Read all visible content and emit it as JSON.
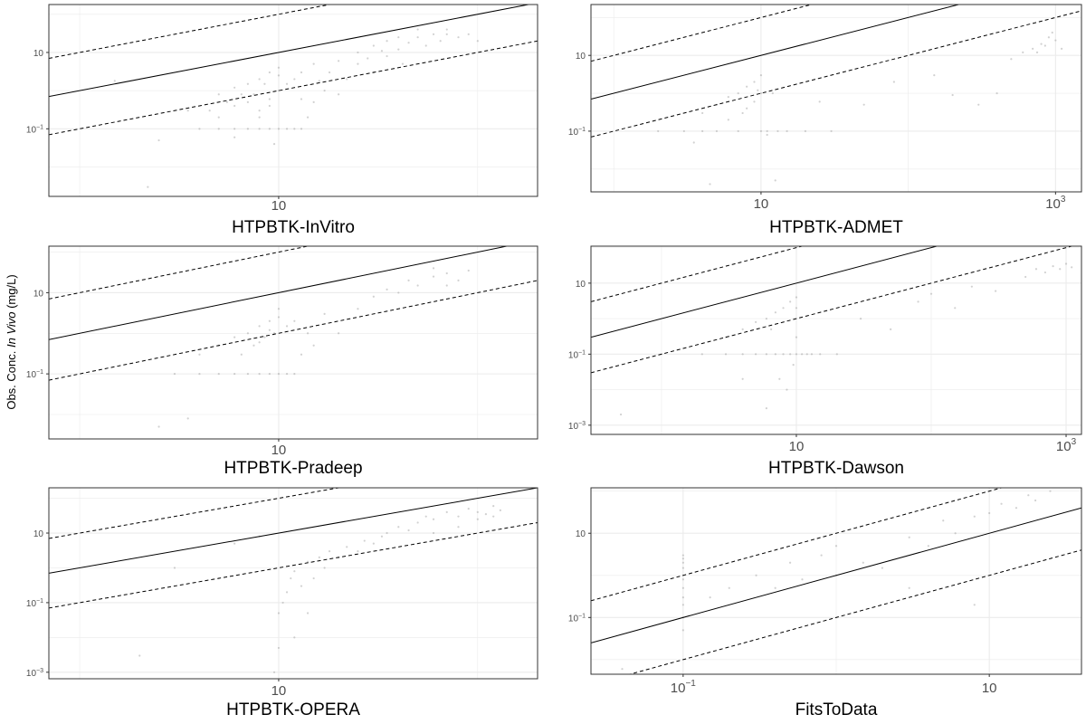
{
  "figure": {
    "ylabel_prefix": "Obs. Conc. ",
    "ylabel_italic": "In Vivo",
    "ylabel_suffix": " (mg/L)"
  },
  "chart_data": [
    {
      "type": "scatter",
      "title": "HTPBTK-InVitro",
      "xscale": "log10",
      "yscale": "log10",
      "xlim": [
        0.7,
        200
      ],
      "ylim": [
        0.0017,
        180
      ],
      "xticks": [
        {
          "value": 10,
          "label": "10"
        }
      ],
      "yticks": [
        {
          "value": 0.1,
          "base": "10",
          "exp": "−1"
        },
        {
          "value": 10,
          "label": "10"
        }
      ],
      "reference_lines": [
        {
          "ratio": 1,
          "style": "solid"
        },
        {
          "ratio": 10,
          "style": "dashed"
        },
        {
          "ratio": 0.1,
          "style": "dashed"
        }
      ],
      "points": [
        [
          2.5,
          0.05
        ],
        [
          3.5,
          0.3
        ],
        [
          4,
          0.1
        ],
        [
          4.5,
          0.3
        ],
        [
          5,
          0.1
        ],
        [
          5,
          0.2
        ],
        [
          5,
          0.8
        ],
        [
          5.5,
          0.5
        ],
        [
          6,
          0.1
        ],
        [
          6,
          0.4
        ],
        [
          6,
          1.2
        ],
        [
          6.5,
          0.8
        ],
        [
          7,
          0.1
        ],
        [
          7,
          0.5
        ],
        [
          7,
          1.5
        ],
        [
          7.5,
          0.8
        ],
        [
          8,
          0.1
        ],
        [
          8,
          0.3
        ],
        [
          8,
          2
        ],
        [
          8.5,
          1.5
        ],
        [
          9,
          0.1
        ],
        [
          9,
          0.6
        ],
        [
          9,
          3
        ],
        [
          9.5,
          0.04
        ],
        [
          10,
          0.1
        ],
        [
          10,
          1
        ],
        [
          10,
          2.5
        ],
        [
          10,
          4
        ],
        [
          11,
          0.1
        ],
        [
          11,
          1.5
        ],
        [
          12,
          0.1
        ],
        [
          12,
          2
        ],
        [
          13,
          0.1
        ],
        [
          13,
          3
        ],
        [
          14,
          0.2
        ],
        [
          15,
          0.5
        ],
        [
          15,
          5
        ],
        [
          17,
          1
        ],
        [
          18,
          3
        ],
        [
          20,
          0.8
        ],
        [
          20,
          6
        ],
        [
          22,
          2
        ],
        [
          25,
          5
        ],
        [
          25,
          10
        ],
        [
          30,
          3
        ],
        [
          30,
          15
        ],
        [
          35,
          8
        ],
        [
          35,
          20
        ],
        [
          40,
          12
        ],
        [
          40,
          25
        ],
        [
          45,
          18
        ],
        [
          50,
          25
        ],
        [
          55,
          15
        ],
        [
          60,
          30
        ],
        [
          65,
          20
        ],
        [
          70,
          30
        ],
        [
          80,
          25
        ],
        [
          90,
          30
        ],
        [
          100,
          20
        ],
        [
          50,
          40
        ],
        [
          70,
          40
        ],
        [
          6,
          0.06
        ],
        [
          8,
          0.2
        ],
        [
          9,
          0.4
        ],
        [
          13,
          0.6
        ],
        [
          16,
          1.8
        ],
        [
          28,
          7
        ],
        [
          33,
          11
        ],
        [
          42,
          5
        ],
        [
          2.2,
          0.003
        ],
        [
          1.5,
          1.8
        ]
      ]
    },
    {
      "type": "scatter",
      "title": "HTPBTK-ADMET",
      "xscale": "log10",
      "yscale": "log10",
      "xlim": [
        0.7,
        1500
      ],
      "ylim": [
        0.0025,
        220
      ],
      "xticks": [
        {
          "value": 10,
          "label": "10"
        },
        {
          "value": 1000,
          "base": "10",
          "exp": "3"
        }
      ],
      "yticks": [
        {
          "value": 0.1,
          "base": "10",
          "exp": "−1"
        },
        {
          "value": 10,
          "label": "10"
        }
      ],
      "reference_lines": [
        {
          "ratio": 1,
          "style": "solid"
        },
        {
          "ratio": 10,
          "style": "dashed"
        },
        {
          "ratio": 0.1,
          "style": "dashed"
        }
      ],
      "points": [
        [
          2,
          0.1
        ],
        [
          3,
          0.1
        ],
        [
          4,
          0.3
        ],
        [
          4,
          0.1
        ],
        [
          5,
          0.5
        ],
        [
          5,
          0.1
        ],
        [
          6,
          0.8
        ],
        [
          6,
          0.2
        ],
        [
          7,
          1
        ],
        [
          7,
          0.1
        ],
        [
          8,
          1.5
        ],
        [
          8,
          0.4
        ],
        [
          9,
          2
        ],
        [
          9,
          0.6
        ],
        [
          10,
          3
        ],
        [
          10,
          1
        ],
        [
          10,
          0.1
        ],
        [
          11,
          0.1
        ],
        [
          12,
          1
        ],
        [
          13,
          0.1
        ],
        [
          15,
          0.1
        ],
        [
          20,
          0.1
        ],
        [
          25,
          0.6
        ],
        [
          30,
          0.1
        ],
        [
          50,
          0.5
        ],
        [
          80,
          2
        ],
        [
          150,
          3
        ],
        [
          200,
          0.9
        ],
        [
          300,
          0.5
        ],
        [
          400,
          1
        ],
        [
          500,
          8
        ],
        [
          600,
          12
        ],
        [
          700,
          15
        ],
        [
          800,
          20
        ],
        [
          900,
          30
        ],
        [
          1000,
          25
        ],
        [
          1100,
          15
        ],
        [
          950,
          40
        ],
        [
          850,
          18
        ],
        [
          750,
          12
        ],
        [
          4.5,
          0.004
        ],
        [
          11,
          0.08
        ],
        [
          12.5,
          0.005
        ],
        [
          3.5,
          0.05
        ],
        [
          7.5,
          0.3
        ],
        [
          9.5,
          1.2
        ]
      ]
    },
    {
      "type": "scatter",
      "title": "HTPBTK-Pradeep",
      "xscale": "log10",
      "yscale": "log10",
      "xlim": [
        0.7,
        200
      ],
      "ylim": [
        0.0025,
        140
      ],
      "xticks": [
        {
          "value": 10,
          "label": "10"
        }
      ],
      "yticks": [
        {
          "value": 0.1,
          "base": "10",
          "exp": "−1"
        },
        {
          "value": 10,
          "label": "10"
        }
      ],
      "reference_lines": [
        {
          "ratio": 1,
          "style": "solid"
        },
        {
          "ratio": 10,
          "style": "dashed"
        },
        {
          "ratio": 0.1,
          "style": "dashed"
        }
      ],
      "points": [
        [
          2.5,
          0.005
        ],
        [
          3,
          0.1
        ],
        [
          4,
          0.1
        ],
        [
          4,
          0.3
        ],
        [
          5,
          0.1
        ],
        [
          5,
          0.5
        ],
        [
          6,
          0.1
        ],
        [
          6,
          0.8
        ],
        [
          6.5,
          0.3
        ],
        [
          7,
          0.1
        ],
        [
          7,
          1
        ],
        [
          7.5,
          0.5
        ],
        [
          8,
          0.1
        ],
        [
          8,
          1.5
        ],
        [
          8.5,
          0.8
        ],
        [
          9,
          0.1
        ],
        [
          9,
          2
        ],
        [
          9.5,
          1
        ],
        [
          10,
          0.1
        ],
        [
          10,
          2.5
        ],
        [
          10,
          4
        ],
        [
          11,
          0.1
        ],
        [
          11,
          1.5
        ],
        [
          12,
          0.1
        ],
        [
          12,
          2
        ],
        [
          13,
          0.3
        ],
        [
          14,
          1
        ],
        [
          15,
          0.5
        ],
        [
          17,
          3
        ],
        [
          20,
          1
        ],
        [
          25,
          4
        ],
        [
          30,
          8
        ],
        [
          35,
          12
        ],
        [
          40,
          10
        ],
        [
          45,
          20
        ],
        [
          50,
          15
        ],
        [
          60,
          25
        ],
        [
          70,
          30
        ],
        [
          80,
          20
        ],
        [
          90,
          35
        ],
        [
          60,
          40
        ],
        [
          70,
          15
        ],
        [
          3.5,
          0.008
        ],
        [
          8,
          0.6
        ],
        [
          9,
          1.2
        ]
      ]
    },
    {
      "type": "scatter",
      "title": "HTPBTK-Dawson",
      "xscale": "log10",
      "yscale": "log10",
      "xlim": [
        0.3,
        1300
      ],
      "ylim": [
        0.00055,
        110
      ],
      "xticks": [
        {
          "value": 10,
          "label": "10"
        },
        {
          "value": 1000,
          "base": "10",
          "exp": "3"
        }
      ],
      "yticks": [
        {
          "value": 0.001,
          "base": "10",
          "exp": "−3"
        },
        {
          "value": 0.1,
          "base": "10",
          "exp": "−1"
        },
        {
          "value": 10,
          "label": "10"
        }
      ],
      "reference_lines": [
        {
          "ratio": 1,
          "style": "solid"
        },
        {
          "ratio": 10,
          "style": "dashed"
        },
        {
          "ratio": 0.1,
          "style": "dashed"
        }
      ],
      "points": [
        [
          0.5,
          0.002
        ],
        [
          1,
          0.1
        ],
        [
          2,
          0.1
        ],
        [
          3,
          0.1
        ],
        [
          3,
          0.3
        ],
        [
          4,
          0.1
        ],
        [
          4,
          0.5
        ],
        [
          5,
          0.1
        ],
        [
          5,
          0.8
        ],
        [
          6,
          0.1
        ],
        [
          6,
          1
        ],
        [
          6.5,
          0.5
        ],
        [
          7,
          0.1
        ],
        [
          7,
          1.5
        ],
        [
          7.5,
          0.02
        ],
        [
          8,
          0.1
        ],
        [
          8,
          2
        ],
        [
          8.5,
          0.01
        ],
        [
          9,
          0.1
        ],
        [
          9,
          3
        ],
        [
          9.5,
          0.05
        ],
        [
          10,
          0.1
        ],
        [
          10,
          2
        ],
        [
          10,
          4
        ],
        [
          10,
          0.3
        ],
        [
          11,
          0.1
        ],
        [
          12,
          0.1
        ],
        [
          13,
          0.1
        ],
        [
          15,
          0.1
        ],
        [
          20,
          0.1
        ],
        [
          30,
          1
        ],
        [
          50,
          0.5
        ],
        [
          80,
          3
        ],
        [
          100,
          5
        ],
        [
          150,
          2
        ],
        [
          200,
          8
        ],
        [
          300,
          6
        ],
        [
          500,
          15
        ],
        [
          600,
          25
        ],
        [
          700,
          20
        ],
        [
          800,
          30
        ],
        [
          900,
          25
        ],
        [
          1000,
          35
        ],
        [
          1100,
          28
        ],
        [
          6,
          0.003
        ],
        [
          4,
          0.02
        ]
      ]
    },
    {
      "type": "scatter",
      "title": "HTPBTK-OPERA",
      "xscale": "log10",
      "yscale": "log10",
      "xlim": [
        0.7,
        200
      ],
      "ylim": [
        0.00065,
        200
      ],
      "xticks": [
        {
          "value": 10,
          "label": "10"
        }
      ],
      "yticks": [
        {
          "value": 0.001,
          "base": "10",
          "exp": "−3"
        },
        {
          "value": 0.1,
          "base": "10",
          "exp": "−1"
        },
        {
          "value": 10,
          "label": "10"
        }
      ],
      "reference_lines": [
        {
          "ratio": 1,
          "style": "solid"
        },
        {
          "ratio": 10,
          "style": "dashed"
        },
        {
          "ratio": 0.1,
          "style": "dashed"
        }
      ],
      "points": [
        [
          2,
          0.003
        ],
        [
          3,
          1
        ],
        [
          5,
          0.5
        ],
        [
          6,
          5
        ],
        [
          8,
          8
        ],
        [
          9.5,
          0.001
        ],
        [
          10,
          0.005
        ],
        [
          10,
          0.05
        ],
        [
          10.5,
          0.1
        ],
        [
          11,
          0.2
        ],
        [
          11.5,
          0.5
        ],
        [
          12,
          0.8
        ],
        [
          13,
          0.3
        ],
        [
          14,
          1.5
        ],
        [
          15,
          0.5
        ],
        [
          16,
          2
        ],
        [
          17,
          1
        ],
        [
          18,
          3
        ],
        [
          20,
          2
        ],
        [
          22,
          4
        ],
        [
          25,
          3
        ],
        [
          27,
          6
        ],
        [
          30,
          5
        ],
        [
          33,
          8
        ],
        [
          35,
          10
        ],
        [
          40,
          15
        ],
        [
          45,
          12
        ],
        [
          50,
          20
        ],
        [
          55,
          30
        ],
        [
          60,
          25
        ],
        [
          70,
          40
        ],
        [
          80,
          30
        ],
        [
          90,
          50
        ],
        [
          100,
          40
        ],
        [
          110,
          35
        ],
        [
          120,
          60
        ],
        [
          130,
          45
        ],
        [
          60,
          10
        ],
        [
          80,
          15
        ],
        [
          100,
          25
        ],
        [
          120,
          30
        ],
        [
          14,
          0.05
        ],
        [
          12,
          0.01
        ]
      ]
    },
    {
      "type": "scatter",
      "title": "FitsToData",
      "xscale": "log10",
      "yscale": "log10",
      "xlim": [
        0.025,
        40
      ],
      "ylim": [
        0.0045,
        120
      ],
      "xticks": [
        {
          "value": 0.1,
          "base": "10",
          "exp": "−1"
        },
        {
          "value": 10,
          "label": "10"
        }
      ],
      "yticks": [
        {
          "value": 0.1,
          "base": "10",
          "exp": "−1"
        },
        {
          "value": 10,
          "label": "10"
        }
      ],
      "reference_lines": [
        {
          "ratio": 1,
          "style": "solid"
        },
        {
          "ratio": 10,
          "style": "dashed"
        },
        {
          "ratio": 0.1,
          "style": "dashed"
        }
      ],
      "points": [
        [
          0.04,
          0.006
        ],
        [
          0.1,
          0.05
        ],
        [
          0.1,
          0.1
        ],
        [
          0.1,
          0.2
        ],
        [
          0.1,
          0.3
        ],
        [
          0.1,
          0.5
        ],
        [
          0.1,
          0.8
        ],
        [
          0.1,
          1
        ],
        [
          0.1,
          1.5
        ],
        [
          0.1,
          2
        ],
        [
          0.1,
          2.5
        ],
        [
          0.1,
          3
        ],
        [
          0.15,
          0.3
        ],
        [
          0.2,
          0.5
        ],
        [
          0.3,
          1
        ],
        [
          0.4,
          0.5
        ],
        [
          0.5,
          2
        ],
        [
          0.6,
          0.8
        ],
        [
          0.8,
          3
        ],
        [
          1,
          1
        ],
        [
          1,
          5
        ],
        [
          1.5,
          2
        ],
        [
          2,
          1.5
        ],
        [
          3,
          8
        ],
        [
          4,
          5
        ],
        [
          5,
          20
        ],
        [
          6,
          10
        ],
        [
          8,
          25
        ],
        [
          10,
          30
        ],
        [
          12,
          50
        ],
        [
          15,
          40
        ],
        [
          18,
          80
        ],
        [
          20,
          60
        ],
        [
          25,
          100
        ],
        [
          8,
          0.2
        ],
        [
          3,
          0.5
        ]
      ]
    }
  ]
}
